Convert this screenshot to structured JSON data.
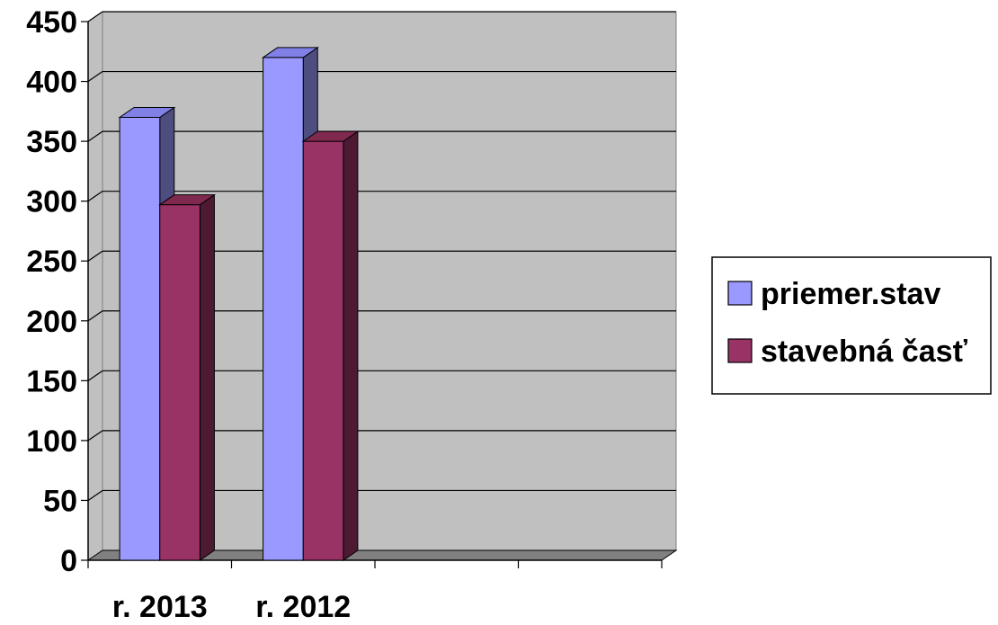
{
  "chart_data": {
    "type": "bar",
    "style": "3d-clustered-column",
    "categories": [
      "r. 2013",
      "r. 2012"
    ],
    "empty_category_slots": 2,
    "series": [
      {
        "name": "priemer.stav",
        "values": [
          370,
          420
        ],
        "color": "#9999ff",
        "side_color": "#4d4d80",
        "top_color": "#8080e6"
      },
      {
        "name": "stavebná časť",
        "values": [
          297,
          350
        ],
        "color": "#993366",
        "side_color": "#4d1a33",
        "top_color": "#80294f"
      }
    ],
    "title": "",
    "xlabel": "",
    "ylabel": "",
    "ylim": [
      0,
      450
    ],
    "yticks": [
      "0",
      "50",
      "100",
      "150",
      "200",
      "250",
      "300",
      "350",
      "400",
      "450"
    ],
    "grid": true,
    "plot_area_color": "#c0c0c0",
    "floor_color": "#808080",
    "legend": {
      "position": "right"
    }
  }
}
